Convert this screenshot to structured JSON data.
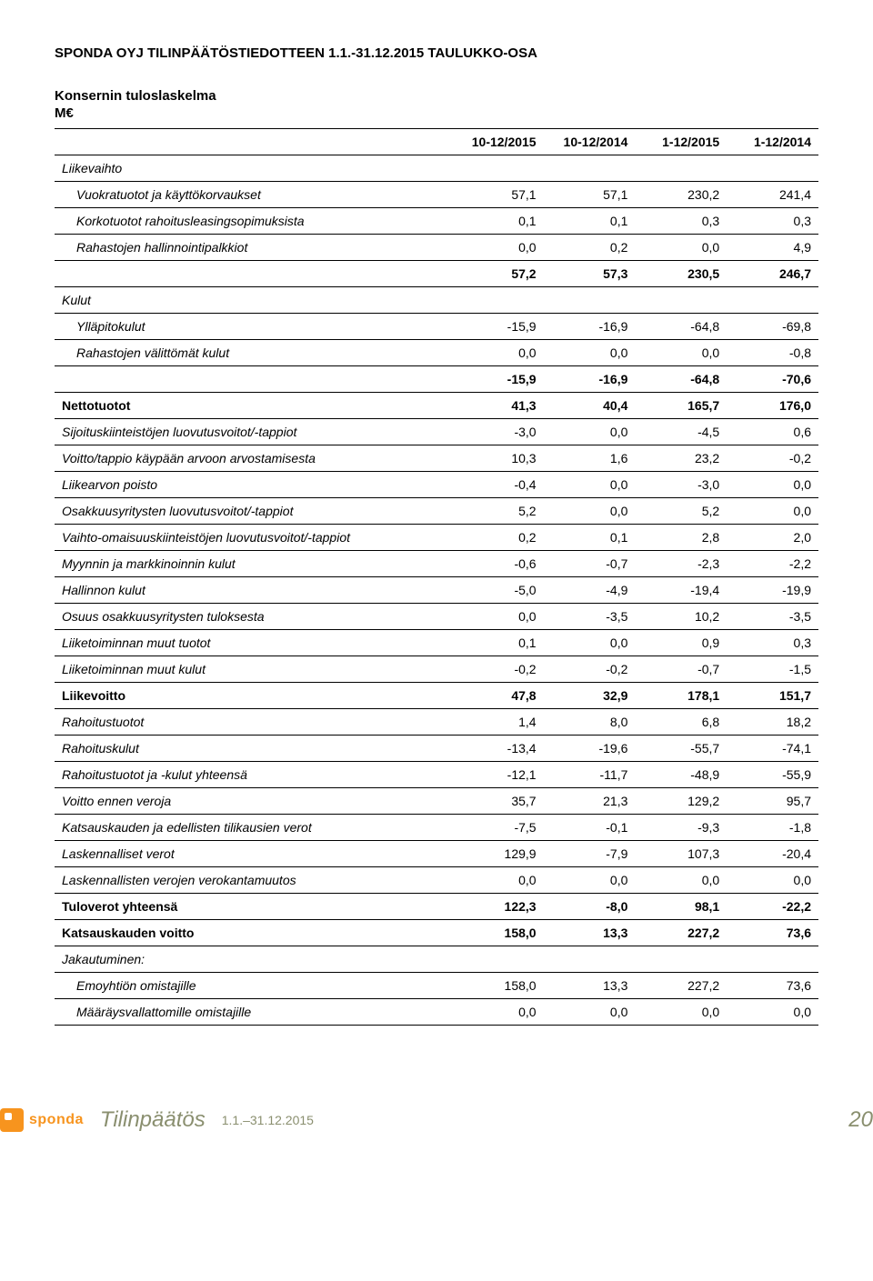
{
  "header": {
    "title": "SPONDA OYJ TILINPÄÄTÖSTIEDOTTEEN 1.1.-31.12.2015 TAULUKKO-OSA"
  },
  "section": {
    "title": "Konsernin tuloslaskelma",
    "currency": "M€"
  },
  "table": {
    "columns": [
      "",
      "10-12/2015",
      "10-12/2014",
      "1-12/2015",
      "1-12/2014"
    ],
    "col_widths": [
      "52%",
      "12%",
      "12%",
      "12%",
      "12%"
    ],
    "rows": [
      {
        "label": "Liikevaihto",
        "vals": [
          "",
          "",
          "",
          ""
        ],
        "italic": true,
        "bold": false,
        "indent": 0
      },
      {
        "label": "Vuokratuotot ja käyttökorvaukset",
        "vals": [
          "57,1",
          "57,1",
          "230,2",
          "241,4"
        ],
        "italic": true,
        "bold": false,
        "indent": 1
      },
      {
        "label": "Korkotuotot rahoitusleasingsopimuksista",
        "vals": [
          "0,1",
          "0,1",
          "0,3",
          "0,3"
        ],
        "italic": true,
        "bold": false,
        "indent": 1
      },
      {
        "label": "Rahastojen hallinnointipalkkiot",
        "vals": [
          "0,0",
          "0,2",
          "0,0",
          "4,9"
        ],
        "italic": true,
        "bold": false,
        "indent": 1
      },
      {
        "label": "",
        "vals": [
          "57,2",
          "57,3",
          "230,5",
          "246,7"
        ],
        "italic": false,
        "bold": true,
        "indent": 0
      },
      {
        "label": "Kulut",
        "vals": [
          "",
          "",
          "",
          ""
        ],
        "italic": true,
        "bold": false,
        "indent": 0
      },
      {
        "label": "Ylläpitokulut",
        "vals": [
          "-15,9",
          "-16,9",
          "-64,8",
          "-69,8"
        ],
        "italic": true,
        "bold": false,
        "indent": 1
      },
      {
        "label": "Rahastojen välittömät kulut",
        "vals": [
          "0,0",
          "0,0",
          "0,0",
          "-0,8"
        ],
        "italic": true,
        "bold": false,
        "indent": 1
      },
      {
        "label": "",
        "vals": [
          "-15,9",
          "-16,9",
          "-64,8",
          "-70,6"
        ],
        "italic": false,
        "bold": true,
        "indent": 0
      },
      {
        "label": "Nettotuotot",
        "vals": [
          "41,3",
          "40,4",
          "165,7",
          "176,0"
        ],
        "italic": false,
        "bold": true,
        "indent": 0
      },
      {
        "label": "Sijoituskiinteistöjen luovutusvoitot/-tappiot",
        "vals": [
          "-3,0",
          "0,0",
          "-4,5",
          "0,6"
        ],
        "italic": true,
        "bold": false,
        "indent": 0
      },
      {
        "label": "Voitto/tappio käypään arvoon arvostamisesta",
        "vals": [
          "10,3",
          "1,6",
          "23,2",
          "-0,2"
        ],
        "italic": true,
        "bold": false,
        "indent": 0
      },
      {
        "label": "Liikearvon poisto",
        "vals": [
          "-0,4",
          "0,0",
          "-3,0",
          "0,0"
        ],
        "italic": true,
        "bold": false,
        "indent": 0
      },
      {
        "label": "Osakkuusyritysten luovutusvoitot/-tappiot",
        "vals": [
          "5,2",
          "0,0",
          "5,2",
          "0,0"
        ],
        "italic": true,
        "bold": false,
        "indent": 0
      },
      {
        "label": "Vaihto-omaisuuskiinteistöjen luovutusvoitot/-tappiot",
        "vals": [
          "0,2",
          "0,1",
          "2,8",
          "2,0"
        ],
        "italic": true,
        "bold": false,
        "indent": 0
      },
      {
        "label": "Myynnin ja markkinoinnin kulut",
        "vals": [
          "-0,6",
          "-0,7",
          "-2,3",
          "-2,2"
        ],
        "italic": true,
        "bold": false,
        "indent": 0
      },
      {
        "label": "Hallinnon kulut",
        "vals": [
          "-5,0",
          "-4,9",
          "-19,4",
          "-19,9"
        ],
        "italic": true,
        "bold": false,
        "indent": 0
      },
      {
        "label": "Osuus osakkuusyritysten tuloksesta",
        "vals": [
          "0,0",
          "-3,5",
          "10,2",
          "-3,5"
        ],
        "italic": true,
        "bold": false,
        "indent": 0
      },
      {
        "label": "Liiketoiminnan muut tuotot",
        "vals": [
          "0,1",
          "0,0",
          "0,9",
          "0,3"
        ],
        "italic": true,
        "bold": false,
        "indent": 0
      },
      {
        "label": "Liiketoiminnan muut kulut",
        "vals": [
          "-0,2",
          "-0,2",
          "-0,7",
          "-1,5"
        ],
        "italic": true,
        "bold": false,
        "indent": 0
      },
      {
        "label": "Liikevoitto",
        "vals": [
          "47,8",
          "32,9",
          "178,1",
          "151,7"
        ],
        "italic": false,
        "bold": true,
        "indent": 0
      },
      {
        "label": "Rahoitustuotot",
        "vals": [
          "1,4",
          "8,0",
          "6,8",
          "18,2"
        ],
        "italic": true,
        "bold": false,
        "indent": 0
      },
      {
        "label": "Rahoituskulut",
        "vals": [
          "-13,4",
          "-19,6",
          "-55,7",
          "-74,1"
        ],
        "italic": true,
        "bold": false,
        "indent": 0
      },
      {
        "label": "Rahoitustuotot ja -kulut yhteensä",
        "vals": [
          "-12,1",
          "-11,7",
          "-48,9",
          "-55,9"
        ],
        "italic": true,
        "bold": false,
        "indent": 0
      },
      {
        "label": "Voitto ennen veroja",
        "vals": [
          "35,7",
          "21,3",
          "129,2",
          "95,7"
        ],
        "italic": true,
        "bold": false,
        "indent": 0
      },
      {
        "label": "Katsauskauden ja edellisten tilikausien verot",
        "vals": [
          "-7,5",
          "-0,1",
          "-9,3",
          "-1,8"
        ],
        "italic": true,
        "bold": false,
        "indent": 0
      },
      {
        "label": "Laskennalliset verot",
        "vals": [
          "129,9",
          "-7,9",
          "107,3",
          "-20,4"
        ],
        "italic": true,
        "bold": false,
        "indent": 0
      },
      {
        "label": "Laskennallisten verojen verokantamuutos",
        "vals": [
          "0,0",
          "0,0",
          "0,0",
          "0,0"
        ],
        "italic": true,
        "bold": false,
        "indent": 0
      },
      {
        "label": "Tuloverot yhteensä",
        "vals": [
          "122,3",
          "-8,0",
          "98,1",
          "-22,2"
        ],
        "italic": false,
        "bold": true,
        "indent": 0
      },
      {
        "label": "Katsauskauden voitto",
        "vals": [
          "158,0",
          "13,3",
          "227,2",
          "73,6"
        ],
        "italic": false,
        "bold": true,
        "indent": 0
      },
      {
        "label": "Jakautuminen:",
        "vals": [
          "",
          "",
          "",
          ""
        ],
        "italic": true,
        "bold": false,
        "indent": 0
      },
      {
        "label": "Emoyhtiön omistajille",
        "vals": [
          "158,0",
          "13,3",
          "227,2",
          "73,6"
        ],
        "italic": true,
        "bold": false,
        "indent": 1
      },
      {
        "label": "Määräysvallattomille omistajille",
        "vals": [
          "0,0",
          "0,0",
          "0,0",
          "0,0"
        ],
        "italic": true,
        "bold": false,
        "indent": 1
      }
    ]
  },
  "footer": {
    "logo_text": "sponda",
    "section": "Tilinpäätös",
    "date": "1.1.–31.12.2015",
    "page": "20"
  }
}
